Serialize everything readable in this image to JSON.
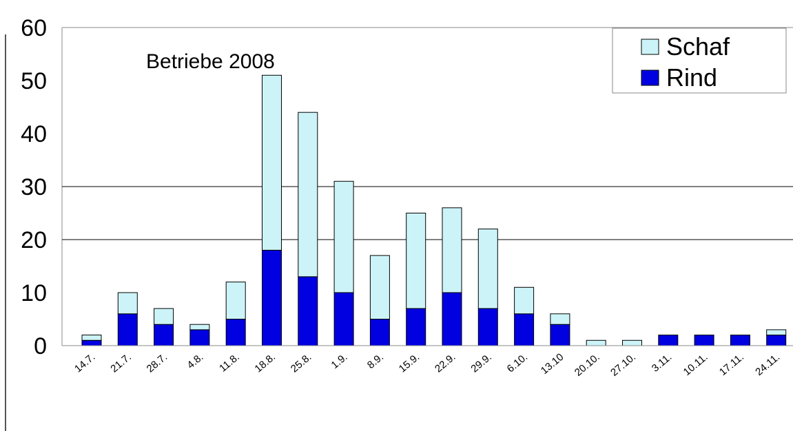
{
  "chart_data": {
    "type": "bar",
    "stacked": true,
    "title": "Betriebe 2008",
    "categories": [
      "14.7.",
      "21.7.",
      "28.7.",
      "4.8.",
      "11.8.",
      "18.8.",
      "25.8.",
      "1.9.",
      "8.9.",
      "15.9.",
      "22.9.",
      "29.9.",
      "6.10.",
      "13.10",
      "20.10.",
      "27.10.",
      "3.11.",
      "10.11.",
      "17.11.",
      "24.11."
    ],
    "series": [
      {
        "name": "Rind",
        "color": "#0000e0",
        "values": [
          1,
          6,
          4,
          3,
          5,
          18,
          13,
          10,
          5,
          7,
          10,
          7,
          6,
          4,
          0,
          0,
          2,
          2,
          2,
          2
        ]
      },
      {
        "name": "Schaf",
        "color": "#ccf4f8",
        "values": [
          1,
          4,
          3,
          1,
          7,
          33,
          31,
          21,
          12,
          18,
          16,
          15,
          5,
          2,
          1,
          1,
          0,
          0,
          0,
          1
        ]
      }
    ],
    "ylim": [
      0,
      60
    ],
    "yticks": [
      "0",
      "10",
      "20",
      "30",
      "40",
      "50",
      "60"
    ],
    "gridlines": [
      20,
      30
    ],
    "legend": {
      "position": "top-right",
      "entries": [
        "Schaf",
        "Rind"
      ]
    }
  }
}
